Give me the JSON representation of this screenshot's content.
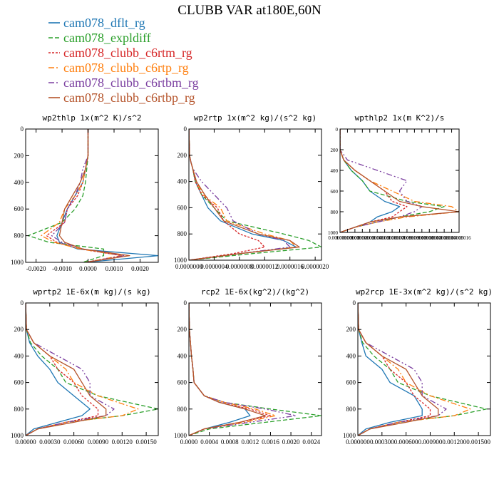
{
  "title": "CLUBB VAR at180E,60N",
  "legend": [
    {
      "name": "cam078_dflt_rg",
      "color": "#1f77b4",
      "dash": ""
    },
    {
      "name": "cam078_expldiff",
      "color": "#2ca02c",
      "dash": "6,3"
    },
    {
      "name": "cam078_clubb_c6rtm_rg",
      "color": "#d62728",
      "dash": "3,2"
    },
    {
      "name": "cam078_clubb_c6rtp_rg",
      "color": "#ff7f0e",
      "dash": "8,3,2,3"
    },
    {
      "name": "cam078_clubb_c6rtbm_rg",
      "color": "#7b3fa0",
      "dash": "8,3,2,3,2,3"
    },
    {
      "name": "cam078_clubb_c6rtbp_rg",
      "color": "#b5542b",
      "dash": ""
    }
  ],
  "chart_data": [
    {
      "type": "line",
      "title": "wp2thlp  1x(m^2 K)/s^2",
      "xlim": [
        -0.0024,
        0.0027
      ],
      "ylim": [
        0,
        1000
      ],
      "y_inverted": true,
      "xticks": [
        -0.002,
        -0.001,
        0.0,
        0.001,
        0.002
      ],
      "xtick_labels": [
        "-0.0020",
        "-0.0010",
        "0.0000",
        "0.0010",
        "0.0020"
      ],
      "yticks": [
        0,
        200,
        400,
        600,
        800,
        1000
      ],
      "ytick_labels": [
        "0",
        "200",
        "400",
        "600",
        "800",
        "1000"
      ],
      "y": [
        0,
        200,
        300,
        400,
        500,
        600,
        700,
        800,
        850,
        900,
        950,
        1000
      ],
      "series": [
        {
          "values": [
            0.0,
            0.0,
            -0.0001,
            -0.0002,
            -0.0005,
            -0.0008,
            -0.001,
            -0.0012,
            -0.0011,
            -0.0004,
            0.0027,
            -0.0001
          ]
        },
        {
          "values": [
            0.0,
            0.0,
            -5e-05,
            -0.0001,
            -0.0002,
            -0.0005,
            -0.001,
            -0.0023,
            -0.0015,
            0.0006,
            0.0006,
            -0.0002
          ]
        },
        {
          "values": [
            0.0,
            0.0,
            -0.0001,
            -0.0002,
            -0.0004,
            -0.0008,
            -0.0009,
            -0.0016,
            -0.0012,
            -0.0003,
            0.0013,
            -0.0001
          ]
        },
        {
          "values": [
            0.0,
            0.0,
            -0.0001,
            -0.0002,
            -0.0005,
            -0.0009,
            -0.0011,
            -0.0018,
            -0.0013,
            -0.0003,
            0.0013,
            -0.0001
          ]
        },
        {
          "values": [
            0.0,
            0.0,
            -0.0002,
            -0.0003,
            -0.0005,
            -0.0008,
            -0.0009,
            -0.0014,
            -0.001,
            -0.0002,
            0.0014,
            -0.0001
          ]
        },
        {
          "values": [
            0.0,
            0.0,
            -0.0001,
            -0.0003,
            -0.0006,
            -0.0009,
            -0.001,
            -0.0011,
            -0.0009,
            -0.0002,
            0.0016,
            -0.0001
          ]
        }
      ]
    },
    {
      "type": "line",
      "title": "wp2rtp  1x(m^2 kg)/(s^2 kg)",
      "xlim": [
        0,
        2.1e-06
      ],
      "ylim": [
        0,
        1000
      ],
      "y_inverted": true,
      "xticks": [
        0,
        4e-07,
        8e-07,
        1.2e-06,
        1.6e-06,
        2e-06
      ],
      "xtick_labels": [
        "0.0000000",
        "0.0000004",
        "0.0000008",
        "0.0000012",
        "0.0000016",
        "0.0000020"
      ],
      "yticks": [
        0,
        200,
        400,
        600,
        800,
        1000
      ],
      "ytick_labels": [
        "0",
        "200",
        "400",
        "600",
        "800",
        "1000"
      ],
      "y": [
        0,
        200,
        250,
        300,
        400,
        500,
        600,
        700,
        800,
        850,
        900,
        950,
        1000
      ],
      "series": [
        {
          "values": [
            0,
            1e-08,
            3e-08,
            6e-08,
            1e-07,
            2e-07,
            3e-07,
            5e-07,
            1e-06,
            1.5e-06,
            1.7e-06,
            8e-07,
            0
          ]
        },
        {
          "values": [
            0,
            1e-08,
            3e-08,
            6e-08,
            1e-07,
            2e-07,
            4e-07,
            6e-07,
            1.5e-06,
            1.9e-06,
            2.1e-06,
            1e-06,
            0
          ]
        },
        {
          "values": [
            0,
            1e-08,
            3e-08,
            6e-08,
            1e-07,
            2e-07,
            4.5e-07,
            5.5e-07,
            8e-07,
            1.1e-06,
            1.2e-06,
            7e-07,
            0
          ]
        },
        {
          "values": [
            0,
            1e-08,
            3e-08,
            6e-08,
            1.2e-07,
            2.2e-07,
            5e-07,
            6e-07,
            1.2e-06,
            1.6e-06,
            1.7e-06,
            8e-07,
            0
          ]
        },
        {
          "values": [
            0,
            1e-08,
            3e-08,
            6e-08,
            2e-07,
            4e-07,
            6e-07,
            7e-07,
            1.1e-06,
            1.5e-06,
            1.6e-06,
            8e-07,
            0
          ]
        },
        {
          "values": [
            0,
            1e-08,
            3e-08,
            6e-08,
            1.2e-07,
            2.5e-07,
            4e-07,
            5.5e-07,
            1.1e-06,
            1.6e-06,
            1.75e-06,
            8e-07,
            0
          ]
        }
      ]
    },
    {
      "type": "line",
      "title": "wpthlp2  1x(m K^2)/s",
      "xlim": [
        0,
        1.6e-07
      ],
      "ylim": [
        0,
        1000
      ],
      "y_inverted": true,
      "xticks": [
        0,
        1e-08,
        2e-08,
        3e-08,
        4e-08,
        5e-08,
        6e-08,
        7e-08,
        8e-08,
        9e-08,
        1e-07,
        1.1e-07,
        1.2e-07,
        1.3e-07,
        1.4e-07,
        1.5e-07,
        1.6e-07
      ],
      "xtick_labels": [
        "0.00000000",
        "0.00000001",
        "0.00000002",
        "0.00000003",
        "0.00000004",
        "0.00000005",
        "0.00000006",
        "0.00000007",
        "0.00000008",
        "0.00000009",
        "0.00000010",
        "0.00000011",
        "0.00000012",
        "0.00000013",
        "0.00000014",
        "0.00000015",
        "0.00000016"
      ],
      "yticks": [
        0,
        200,
        400,
        600,
        800,
        1000
      ],
      "ytick_labels": [
        "0",
        "200",
        "400",
        "600",
        "800",
        "1000"
      ],
      "y": [
        0,
        200,
        300,
        400,
        500,
        600,
        700,
        750,
        800,
        850,
        900,
        950,
        1000
      ],
      "series": [
        {
          "values": [
            0,
            0,
            5e-09,
            1.5e-08,
            3e-08,
            4e-08,
            6e-08,
            8e-08,
            7e-08,
            5e-08,
            4e-08,
            2e-08,
            0
          ]
        },
        {
          "values": [
            0,
            0,
            5e-09,
            1.5e-08,
            3e-08,
            4e-08,
            9e-08,
            1.4e-07,
            1.2e-07,
            8e-08,
            5e-08,
            2e-08,
            0
          ]
        },
        {
          "values": [
            0,
            0,
            5e-09,
            2e-08,
            4e-08,
            6e-08,
            7e-08,
            9e-08,
            8e-08,
            7e-08,
            4e-08,
            2e-08,
            0
          ]
        },
        {
          "values": [
            0,
            0,
            5e-09,
            2e-08,
            4e-08,
            7e-08,
            1e-07,
            1.5e-07,
            1.6e-07,
            9e-08,
            5e-08,
            2e-08,
            0
          ]
        },
        {
          "values": [
            0,
            0,
            1e-08,
            5e-08,
            9e-08,
            8e-08,
            9e-08,
            1.1e-07,
            1e-07,
            8e-08,
            5e-08,
            2e-08,
            0
          ]
        },
        {
          "values": [
            0,
            0,
            5e-09,
            2e-08,
            4e-08,
            6e-08,
            8e-08,
            1.1e-07,
            1.6e-07,
            8e-08,
            4e-08,
            2e-08,
            0
          ]
        }
      ]
    },
    {
      "type": "line",
      "title": "wprtp2  1E-6x(m kg)/(s kg)",
      "xlim": [
        0,
        0.00165
      ],
      "ylim": [
        0,
        1000
      ],
      "y_inverted": true,
      "xticks": [
        0,
        0.0003,
        0.0006,
        0.0009,
        0.0012,
        0.0015
      ],
      "xtick_labels": [
        "0.00000",
        "0.00030",
        "0.00060",
        "0.00090",
        "0.00120",
        "0.00150"
      ],
      "yticks": [
        0,
        200,
        400,
        600,
        800,
        1000
      ],
      "ytick_labels": [
        "0",
        "200",
        "400",
        "600",
        "800",
        "1000"
      ],
      "y": [
        0,
        200,
        300,
        400,
        500,
        600,
        700,
        800,
        850,
        900,
        950,
        1000
      ],
      "series": [
        {
          "values": [
            0,
            1e-05,
            5e-05,
            0.00015,
            0.0003,
            0.0004,
            0.0006,
            0.0008,
            0.0007,
            0.0004,
            0.0001,
            0
          ]
        },
        {
          "values": [
            0,
            1e-05,
            6e-05,
            0.0002,
            0.0004,
            0.0005,
            0.0009,
            0.00165,
            0.0012,
            0.0005,
            0.00015,
            0
          ]
        },
        {
          "values": [
            0,
            1e-05,
            0.0001,
            0.0003,
            0.0004,
            0.0006,
            0.0007,
            0.0009,
            0.0009,
            0.0005,
            0.00015,
            0
          ]
        },
        {
          "values": [
            0,
            1e-05,
            0.0001,
            0.0003,
            0.0005,
            0.0006,
            0.0009,
            0.0014,
            0.0012,
            0.0005,
            0.00015,
            0
          ]
        },
        {
          "values": [
            0,
            1e-05,
            0.0001,
            0.0004,
            0.0007,
            0.0008,
            0.0008,
            0.0011,
            0.001,
            0.0005,
            0.00015,
            0
          ]
        },
        {
          "values": [
            0,
            1e-05,
            0.0001,
            0.0003,
            0.0006,
            0.0007,
            0.0008,
            0.001,
            0.001,
            0.0006,
            0.00015,
            0
          ]
        }
      ]
    },
    {
      "type": "line",
      "title": "rcp2  1E-6x(kg^2)/(kg^2)",
      "xlim": [
        0,
        0.0026
      ],
      "ylim": [
        0,
        1000
      ],
      "y_inverted": true,
      "xticks": [
        0,
        0.0004,
        0.0008,
        0.0012,
        0.0016,
        0.002,
        0.0024
      ],
      "xtick_labels": [
        "0.0000",
        "0.0004",
        "0.0008",
        "0.0012",
        "0.0016",
        "0.0020",
        "0.0024"
      ],
      "yticks": [
        0,
        200,
        400,
        600,
        800,
        1000
      ],
      "ytick_labels": [
        "0",
        "200",
        "400",
        "600",
        "800",
        "1000"
      ],
      "y": [
        0,
        200,
        400,
        500,
        600,
        700,
        750,
        800,
        850,
        900,
        950,
        1000
      ],
      "series": [
        {
          "values": [
            0,
            1e-05,
            5e-05,
            8e-05,
            0.0001,
            0.0003,
            0.0006,
            0.0011,
            0.0012,
            0.0008,
            0.0003,
            0
          ]
        },
        {
          "values": [
            0,
            1e-05,
            5e-05,
            8e-05,
            0.0001,
            0.0003,
            0.0007,
            0.0016,
            0.0026,
            0.0015,
            0.0004,
            0
          ]
        },
        {
          "values": [
            0,
            1e-05,
            5e-05,
            8e-05,
            0.0001,
            0.0003,
            0.0006,
            0.0012,
            0.0016,
            0.001,
            0.0003,
            0
          ]
        },
        {
          "values": [
            0,
            1e-05,
            5e-05,
            8e-05,
            0.0001,
            0.0003,
            0.0007,
            0.0013,
            0.0017,
            0.0011,
            0.0003,
            0
          ]
        },
        {
          "values": [
            0,
            1e-05,
            5e-05,
            8e-05,
            0.0001,
            0.0003,
            0.0007,
            0.0015,
            0.0021,
            0.0012,
            0.0003,
            0
          ]
        },
        {
          "values": [
            0,
            1e-05,
            5e-05,
            8e-05,
            0.0001,
            0.0003,
            0.0006,
            0.0011,
            0.0015,
            0.001,
            0.0003,
            0
          ]
        }
      ]
    },
    {
      "type": "line",
      "title": "wp2rcp  1E-3x(m^2 kg)/(s^2 kg)",
      "xlim": [
        0,
        0.00165
      ],
      "ylim": [
        0,
        1000
      ],
      "y_inverted": true,
      "xticks": [
        0,
        0.0003,
        0.0006,
        0.0009,
        0.0012,
        0.0015
      ],
      "xtick_labels": [
        "0.000000",
        "0.000300",
        "0.000600",
        "0.000900",
        "0.001200",
        "0.001500"
      ],
      "yticks": [
        0,
        200,
        400,
        600,
        800,
        1000
      ],
      "ytick_labels": [
        "0",
        "200",
        "400",
        "600",
        "800",
        "1000"
      ],
      "y": [
        0,
        200,
        300,
        400,
        500,
        600,
        700,
        800,
        850,
        900,
        950,
        1000
      ],
      "series": [
        {
          "values": [
            0,
            1e-05,
            5e-05,
            0.0001,
            0.0003,
            0.0004,
            0.0007,
            0.0008,
            0.0008,
            0.0004,
            0.0001,
            0
          ]
        },
        {
          "values": [
            0,
            1e-05,
            6e-05,
            0.0002,
            0.0004,
            0.0005,
            0.0009,
            0.0016,
            0.0012,
            0.0005,
            0.00015,
            0
          ]
        },
        {
          "values": [
            0,
            1e-05,
            0.0001,
            0.0003,
            0.0004,
            0.0006,
            0.0007,
            0.0009,
            0.0009,
            0.0005,
            0.00015,
            0
          ]
        },
        {
          "values": [
            0,
            1e-05,
            0.0001,
            0.0003,
            0.0005,
            0.0006,
            0.0009,
            0.0014,
            0.0012,
            0.0005,
            0.00015,
            0
          ]
        },
        {
          "values": [
            0,
            1e-05,
            0.0001,
            0.0004,
            0.0007,
            0.0008,
            0.0008,
            0.0011,
            0.001,
            0.0005,
            0.00015,
            0
          ]
        },
        {
          "values": [
            0,
            1e-05,
            0.0001,
            0.0003,
            0.0006,
            0.0007,
            0.0008,
            0.001,
            0.001,
            0.0006,
            0.00015,
            0
          ]
        }
      ]
    }
  ]
}
